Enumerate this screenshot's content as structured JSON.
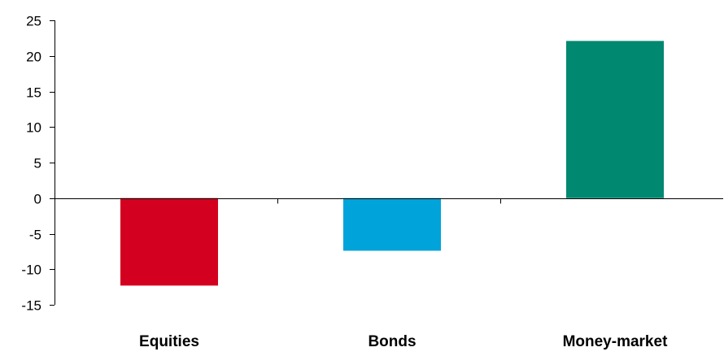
{
  "chart_data": {
    "type": "bar",
    "categories": [
      "Equities",
      "Bonds",
      "Money-market"
    ],
    "values": [
      -12.3,
      -7.4,
      22.1
    ],
    "colors": [
      "#d4001f",
      "#00a3da",
      "#008870"
    ],
    "title": "",
    "xlabel": "",
    "ylabel": "",
    "ylim": [
      -15,
      25
    ],
    "yticks": [
      25,
      20,
      15,
      10,
      5,
      0,
      -5,
      -10,
      -15
    ],
    "ytick_labels": [
      "25",
      "20",
      "15",
      "10",
      "5",
      "0",
      "-5",
      "-10",
      "-15"
    ],
    "grid": false,
    "legend": "none"
  }
}
